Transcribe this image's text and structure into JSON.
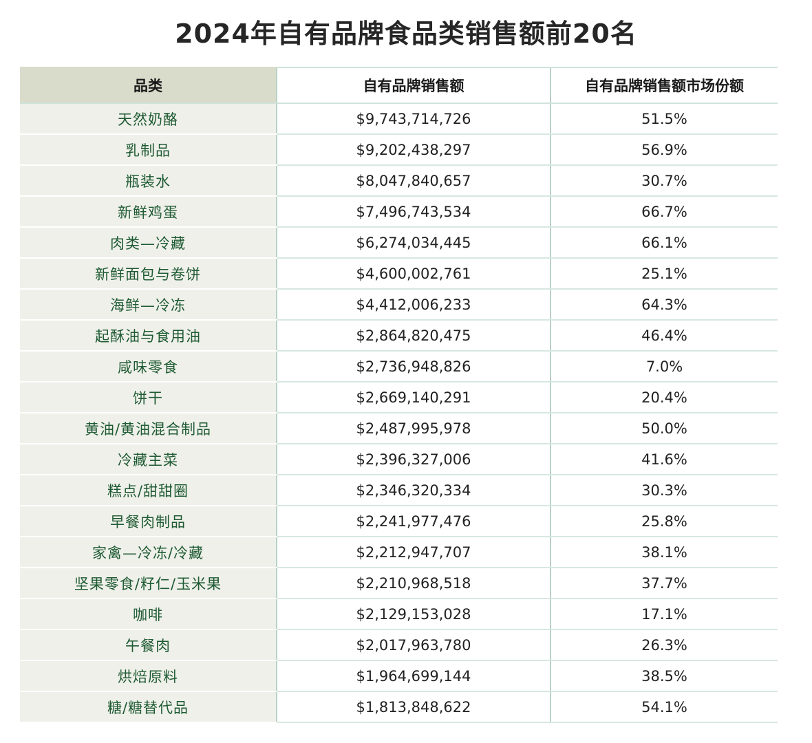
{
  "title": "2024年自有品牌食品类销售额前20名",
  "table": {
    "headers": [
      "品类",
      "自有品牌销售额",
      "自有品牌销售额市场份额"
    ],
    "rows": [
      {
        "category": "天然奶酪",
        "sales": "$9,743,714,726",
        "share": "51.5%"
      },
      {
        "category": "乳制品",
        "sales": "$9,202,438,297",
        "share": "56.9%"
      },
      {
        "category": "瓶装水",
        "sales": "$8,047,840,657",
        "share": "30.7%"
      },
      {
        "category": "新鲜鸡蛋",
        "sales": "$7,496,743,534",
        "share": "66.7%"
      },
      {
        "category": "肉类—冷藏",
        "sales": "$6,274,034,445",
        "share": "66.1%"
      },
      {
        "category": "新鲜面包与卷饼",
        "sales": "$4,600,002,761",
        "share": "25.1%"
      },
      {
        "category": "海鲜—冷冻",
        "sales": "$4,412,006,233",
        "share": "64.3%"
      },
      {
        "category": "起酥油与食用油",
        "sales": "$2,864,820,475",
        "share": "46.4%"
      },
      {
        "category": "咸味零食",
        "sales": "$2,736,948,826",
        "share": "7.0%"
      },
      {
        "category": "饼干",
        "sales": "$2,669,140,291",
        "share": "20.4%"
      },
      {
        "category": "黄油/黄油混合制品",
        "sales": "$2,487,995,978",
        "share": "50.0%"
      },
      {
        "category": "冷藏主菜",
        "sales": "$2,396,327,006",
        "share": "41.6%"
      },
      {
        "category": "糕点/甜甜圈",
        "sales": "$2,346,320,334",
        "share": "30.3%"
      },
      {
        "category": "早餐肉制品",
        "sales": "$2,241,977,476",
        "share": "25.8%"
      },
      {
        "category": "家禽—冷冻/冷藏",
        "sales": "$2,212,947,707",
        "share": "38.1%"
      },
      {
        "category": "坚果零食/籽仁/玉米果",
        "sales": "$2,210,968,518",
        "share": "37.7%"
      },
      {
        "category": "咖啡",
        "sales": "$2,129,153,028",
        "share": "17.1%"
      },
      {
        "category": "午餐肉",
        "sales": "$2,017,963,780",
        "share": "26.3%"
      },
      {
        "category": "烘焙原料",
        "sales": "$1,964,699,144",
        "share": "38.5%"
      },
      {
        "category": "糖/糖替代品",
        "sales": "$1,813,848,622",
        "share": "54.1%"
      }
    ]
  }
}
